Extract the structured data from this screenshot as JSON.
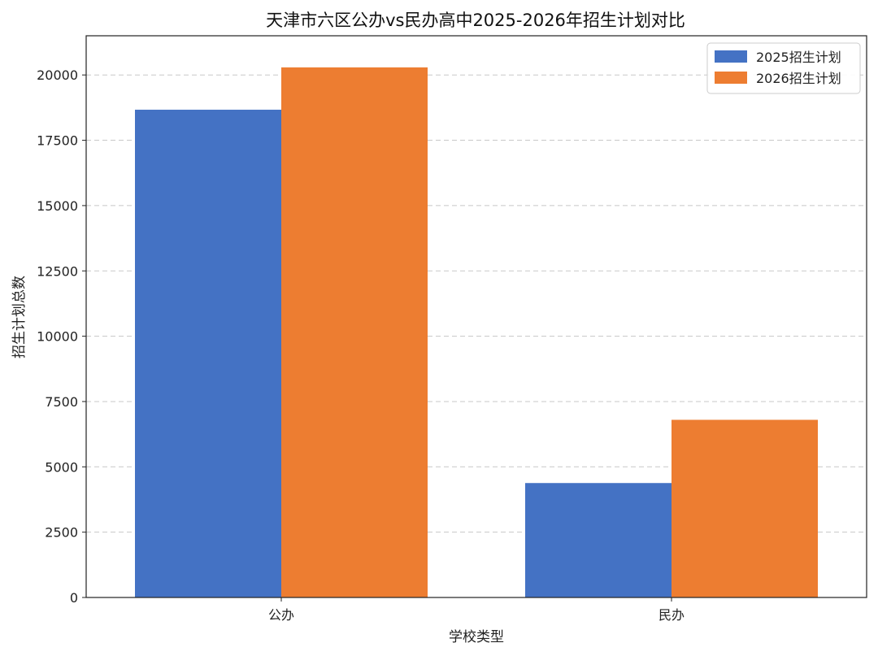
{
  "chart_data": {
    "type": "bar",
    "title": "天津市六区公办vs民办高中2025-2026年招生计划对比",
    "xlabel": "学校类型",
    "ylabel": "招生计划总数",
    "categories": [
      "公办",
      "民办"
    ],
    "series": [
      {
        "name": "2025招生计划",
        "values": [
          18670,
          4380
        ],
        "color": "#4472C4"
      },
      {
        "name": "2026招生计划",
        "values": [
          20290,
          6800
        ],
        "color": "#ED7D31"
      }
    ],
    "ylim": [
      0,
      21500
    ],
    "yticks": [
      0,
      2500,
      5000,
      7500,
      10000,
      12500,
      15000,
      17500,
      20000
    ],
    "grid": "y-dashed",
    "legend_position": "top-right"
  }
}
